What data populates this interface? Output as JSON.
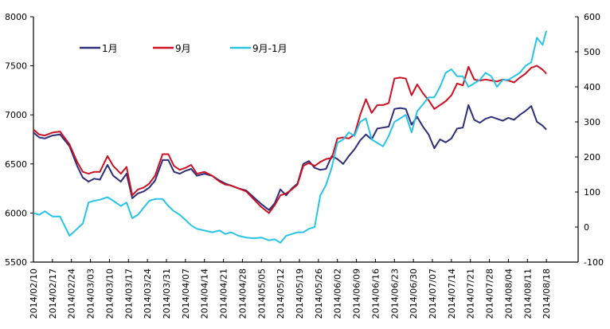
{
  "chart_data": {
    "type": "line",
    "title": "",
    "xlabel": "",
    "ylabel": "",
    "ylabel_right": "",
    "legend_position": "top-left inside",
    "grid": false,
    "left_axis": {
      "ylim": [
        5500,
        8000
      ],
      "ticks": [
        5500,
        6000,
        6500,
        7000,
        7500,
        8000
      ]
    },
    "right_axis": {
      "ylim": [
        -100,
        600
      ],
      "ticks": [
        -100,
        0,
        100,
        200,
        300,
        400,
        500,
        600
      ]
    },
    "x_tick_labels": [
      "2014/02/10",
      "2014/02/17",
      "2014/02/24",
      "2014/03/03",
      "2014/03/10",
      "2014/03/17",
      "2014/03/24",
      "2014/03/31",
      "2014/04/07",
      "2014/04/14",
      "2014/04/21",
      "2014/04/28",
      "2014/05/05",
      "2014/05/12",
      "2014/05/19",
      "2014/05/26",
      "2014/06/02",
      "2014/06/09",
      "2014/06/16",
      "2014/06/23",
      "2014/06/30",
      "2014/07/07",
      "2014/07/14",
      "2014/07/21",
      "2014/07/28",
      "2014/08/04",
      "2014/08/11",
      "2014/08/18"
    ],
    "x_units": "weeks since 2014/02/10",
    "series": [
      {
        "name": "1月",
        "axis": "left",
        "color": "#2e2e7a",
        "x": [
          0,
          0.3,
          0.6,
          1,
          1.4,
          1.9,
          2.3,
          2.6,
          2.9,
          3.2,
          3.5,
          3.9,
          4.2,
          4.6,
          4.9,
          5.2,
          5.5,
          5.8,
          6.1,
          6.4,
          6.8,
          7.1,
          7.4,
          7.7,
          8.0,
          8.3,
          8.6,
          9.0,
          9.4,
          9.8,
          10.1,
          10.4,
          10.8,
          11.2,
          11.6,
          12.0,
          12.4,
          12.7,
          13.0,
          13.3,
          13.6,
          13.9,
          14.2,
          14.5,
          14.8,
          15.1,
          15.4,
          15.7,
          16.0,
          16.3,
          16.6,
          16.9,
          17.2,
          17.5,
          17.8,
          18.1,
          18.4,
          18.7,
          19.0,
          19.3,
          19.6,
          19.9,
          20.2,
          20.5,
          20.8,
          21.1,
          21.4,
          21.7,
          22.0,
          22.3,
          22.6,
          22.9,
          23.2,
          23.5,
          23.8,
          24.1,
          24.4,
          24.7,
          25.0,
          25.3,
          25.6,
          25.9,
          26.2,
          26.5,
          26.8,
          27.0
        ],
        "values": [
          6820,
          6770,
          6760,
          6790,
          6800,
          6680,
          6480,
          6360,
          6320,
          6350,
          6340,
          6490,
          6380,
          6320,
          6400,
          6150,
          6200,
          6220,
          6260,
          6330,
          6540,
          6540,
          6420,
          6400,
          6430,
          6450,
          6380,
          6400,
          6380,
          6330,
          6300,
          6280,
          6250,
          6230,
          6160,
          6090,
          6030,
          6100,
          6240,
          6180,
          6250,
          6300,
          6500,
          6530,
          6460,
          6440,
          6450,
          6580,
          6550,
          6500,
          6580,
          6650,
          6740,
          6800,
          6750,
          6860,
          6870,
          6880,
          7060,
          7070,
          7060,
          6900,
          6980,
          6880,
          6800,
          6660,
          6750,
          6720,
          6760,
          6860,
          6870,
          7100,
          6950,
          6920,
          6960,
          6980,
          6960,
          6940,
          6970,
          6950,
          7000,
          7040,
          7090,
          6930,
          6890,
          6850
        ],
        "note": "approximate readings"
      },
      {
        "name": "9月",
        "axis": "left",
        "color": "#cc1122",
        "x": [
          0,
          0.3,
          0.6,
          1,
          1.4,
          1.9,
          2.3,
          2.6,
          2.9,
          3.2,
          3.5,
          3.9,
          4.2,
          4.6,
          4.9,
          5.2,
          5.5,
          5.8,
          6.1,
          6.4,
          6.8,
          7.1,
          7.4,
          7.7,
          8.0,
          8.3,
          8.6,
          9.0,
          9.4,
          9.8,
          10.1,
          10.4,
          10.8,
          11.2,
          11.6,
          12.0,
          12.4,
          12.7,
          13.0,
          13.3,
          13.6,
          13.9,
          14.2,
          14.5,
          14.8,
          15.1,
          15.4,
          15.7,
          16.0,
          16.3,
          16.6,
          16.9,
          17.2,
          17.5,
          17.8,
          18.1,
          18.4,
          18.7,
          19.0,
          19.3,
          19.6,
          19.9,
          20.2,
          20.5,
          20.8,
          21.1,
          21.4,
          21.7,
          22.0,
          22.3,
          22.6,
          22.9,
          23.2,
          23.5,
          23.8,
          24.1,
          24.4,
          24.7,
          25.0,
          25.3,
          25.6,
          25.9,
          26.2,
          26.5,
          26.8,
          27.0
        ],
        "values": [
          6850,
          6800,
          6790,
          6820,
          6830,
          6700,
          6520,
          6420,
          6400,
          6420,
          6420,
          6580,
          6480,
          6400,
          6470,
          6180,
          6240,
          6260,
          6300,
          6380,
          6600,
          6600,
          6480,
          6440,
          6460,
          6490,
          6400,
          6420,
          6380,
          6320,
          6290,
          6280,
          6250,
          6220,
          6140,
          6060,
          6000,
          6080,
          6180,
          6200,
          6240,
          6290,
          6480,
          6510,
          6480,
          6520,
          6550,
          6560,
          6760,
          6770,
          6760,
          6800,
          7000,
          7160,
          7020,
          7100,
          7100,
          7120,
          7370,
          7380,
          7370,
          7200,
          7310,
          7220,
          7150,
          7060,
          7100,
          7140,
          7200,
          7320,
          7300,
          7490,
          7360,
          7350,
          7360,
          7350,
          7340,
          7360,
          7350,
          7330,
          7380,
          7420,
          7480,
          7500,
          7460,
          7420
        ],
        "note": "approximate readings"
      },
      {
        "name": "9月-1月",
        "axis": "right",
        "color": "#28c4e8",
        "x": [
          0,
          0.3,
          0.6,
          1,
          1.4,
          1.9,
          2.3,
          2.6,
          2.9,
          3.2,
          3.5,
          3.9,
          4.2,
          4.6,
          4.9,
          5.2,
          5.5,
          5.8,
          6.1,
          6.4,
          6.8,
          7.1,
          7.4,
          7.7,
          8.0,
          8.3,
          8.6,
          9.0,
          9.4,
          9.8,
          10.1,
          10.4,
          10.8,
          11.2,
          11.6,
          12.0,
          12.4,
          12.7,
          13.0,
          13.3,
          13.6,
          13.9,
          14.2,
          14.5,
          14.8,
          15.1,
          15.4,
          15.7,
          16.0,
          16.3,
          16.6,
          16.9,
          17.2,
          17.5,
          17.8,
          18.1,
          18.4,
          18.7,
          19.0,
          19.3,
          19.6,
          19.9,
          20.2,
          20.5,
          20.8,
          21.1,
          21.4,
          21.7,
          22.0,
          22.3,
          22.6,
          22.9,
          23.2,
          23.5,
          23.8,
          24.1,
          24.4,
          24.7,
          25.0,
          25.3,
          25.6,
          25.9,
          26.2,
          26.5,
          26.8,
          27.0
        ],
        "values": [
          40,
          35,
          45,
          30,
          30,
          -25,
          -5,
          10,
          70,
          75,
          78,
          85,
          75,
          60,
          70,
          25,
          35,
          55,
          75,
          80,
          80,
          60,
          45,
          35,
          20,
          5,
          -5,
          -10,
          -15,
          -10,
          -20,
          -15,
          -25,
          -30,
          -32,
          -30,
          -38,
          -35,
          -45,
          -25,
          -20,
          -15,
          -15,
          -5,
          0,
          90,
          120,
          170,
          240,
          250,
          270,
          260,
          300,
          310,
          250,
          240,
          230,
          260,
          300,
          310,
          320,
          270,
          330,
          350,
          370,
          370,
          400,
          440,
          450,
          430,
          430,
          400,
          410,
          420,
          440,
          430,
          400,
          420,
          420,
          430,
          440,
          460,
          470,
          540,
          520,
          560
        ],
        "note": "approximate readings"
      }
    ]
  },
  "legend": {
    "items": [
      {
        "label": "1月",
        "color": "#2e2e7a"
      },
      {
        "label": "9月",
        "color": "#cc1122"
      },
      {
        "label": "9月-1月",
        "color": "#28c4e8"
      }
    ]
  }
}
